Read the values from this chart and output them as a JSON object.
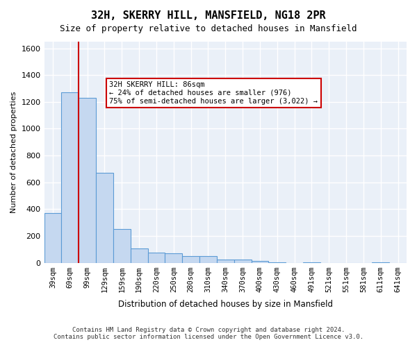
{
  "title": "32H, SKERRY HILL, MANSFIELD, NG18 2PR",
  "subtitle": "Size of property relative to detached houses in Mansfield",
  "xlabel": "Distribution of detached houses by size in Mansfield",
  "ylabel": "Number of detached properties",
  "footer_line1": "Contains HM Land Registry data © Crown copyright and database right 2024.",
  "footer_line2": "Contains public sector information licensed under the Open Government Licence v3.0.",
  "categories": [
    "39sqm",
    "69sqm",
    "99sqm",
    "129sqm",
    "159sqm",
    "190sqm",
    "220sqm",
    "250sqm",
    "280sqm",
    "310sqm",
    "340sqm",
    "370sqm",
    "400sqm",
    "430sqm",
    "460sqm",
    "491sqm",
    "521sqm",
    "551sqm",
    "581sqm",
    "611sqm",
    "641sqm"
  ],
  "values": [
    370,
    1270,
    1230,
    670,
    250,
    105,
    75,
    70,
    50,
    50,
    25,
    25,
    15,
    5,
    0,
    5,
    0,
    0,
    0,
    5,
    0
  ],
  "bar_color": "#c5d8f0",
  "bar_edge_color": "#5b9bd5",
  "background_color": "#eaf0f8",
  "grid_color": "#ffffff",
  "ylim": [
    0,
    1650
  ],
  "yticks": [
    0,
    200,
    400,
    600,
    800,
    1000,
    1200,
    1400,
    1600
  ],
  "property_size": 86,
  "property_label": "32H SKERRY HILL: 86sqm",
  "annotation_line1": "← 24% of detached houses are smaller (976)",
  "annotation_line2": "75% of semi-detached houses are larger (3,022) →",
  "red_line_x": 1,
  "annotation_box_color": "#ffffff",
  "annotation_border_color": "#cc0000",
  "red_line_color": "#cc0000"
}
